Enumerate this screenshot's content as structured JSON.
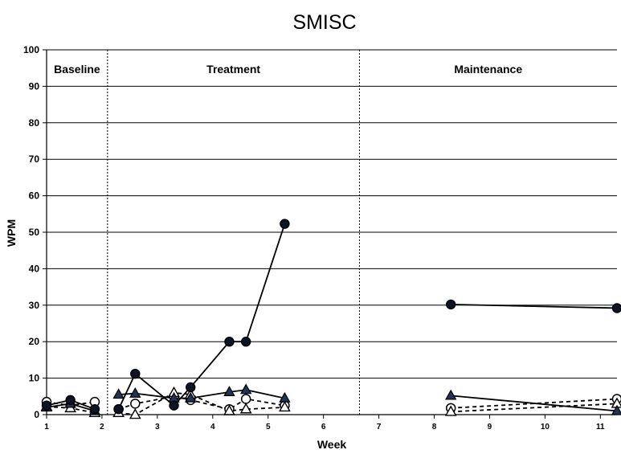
{
  "chart_data": {
    "type": "line",
    "title": "SMISC",
    "xlabel": "Week",
    "ylabel": "WPM",
    "xlim": [
      1,
      11.3
    ],
    "ylim": [
      0,
      100
    ],
    "xticks": [
      1,
      2,
      3,
      4,
      5,
      6,
      7,
      8,
      9,
      10,
      11
    ],
    "yticks": [
      0,
      10,
      20,
      30,
      40,
      50,
      60,
      70,
      80,
      90,
      100
    ],
    "grid": "horizontal",
    "phases": [
      {
        "label": "Baseline",
        "start": 1,
        "end": 2.1
      },
      {
        "label": "Treatment",
        "start": 2.1,
        "end": 6.65
      },
      {
        "label": "Maintenance",
        "start": 6.65,
        "end": 11.3
      }
    ],
    "phase_lines": [
      2.1,
      6.65
    ],
    "series": [
      {
        "marker": "filled-circle",
        "line": "solid",
        "segments": [
          [
            [
              1,
              2.5
            ],
            [
              1.43,
              4
            ],
            [
              1.87,
              1.5
            ]
          ],
          [
            [
              2.3,
              1.5
            ],
            [
              2.6,
              11.2
            ],
            [
              3.3,
              2.5
            ],
            [
              3.6,
              7.5
            ],
            [
              4.3,
              20
            ],
            [
              4.6,
              20
            ],
            [
              5.3,
              52.3
            ]
          ],
          [
            [
              8.3,
              30.2
            ],
            [
              11.3,
              29.2
            ]
          ]
        ]
      },
      {
        "marker": "filled-triangle",
        "line": "solid",
        "segments": [
          [
            [
              1,
              2
            ],
            [
              1.43,
              3
            ],
            [
              1.87,
              1
            ]
          ],
          [
            [
              2.3,
              5.5
            ],
            [
              2.6,
              5.8
            ],
            [
              3.3,
              4.5
            ],
            [
              3.6,
              4.5
            ],
            [
              4.3,
              6.2
            ],
            [
              4.6,
              6.8
            ],
            [
              5.3,
              4.5
            ]
          ],
          [
            [
              8.3,
              5.2
            ],
            [
              11.3,
              1
            ]
          ]
        ]
      },
      {
        "marker": "open-circle",
        "line": "dashed",
        "segments": [
          [
            [
              1,
              3.5
            ],
            [
              1.43,
              2.5
            ],
            [
              1.87,
              3.5
            ]
          ],
          [
            [
              2.3,
              1.5
            ],
            [
              2.6,
              3
            ],
            [
              3.3,
              5
            ],
            [
              3.6,
              4
            ],
            [
              4.3,
              1.5
            ],
            [
              4.6,
              4.3
            ],
            [
              5.3,
              2.5
            ]
          ],
          [
            [
              8.3,
              1.8
            ],
            [
              11.3,
              4.3
            ]
          ]
        ]
      },
      {
        "marker": "open-triangle",
        "line": "dashed",
        "segments": [
          [
            [
              1,
              2.2
            ],
            [
              1.43,
              1.8
            ],
            [
              1.87,
              0.5
            ]
          ],
          [
            [
              2.3,
              0.5
            ],
            [
              2.6,
              0
            ],
            [
              3.3,
              6
            ],
            [
              3.6,
              5.5
            ],
            [
              4.3,
              1
            ],
            [
              4.6,
              1.5
            ],
            [
              5.3,
              2
            ]
          ],
          [
            [
              8.3,
              0.8
            ],
            [
              11.3,
              3
            ]
          ]
        ]
      }
    ]
  }
}
